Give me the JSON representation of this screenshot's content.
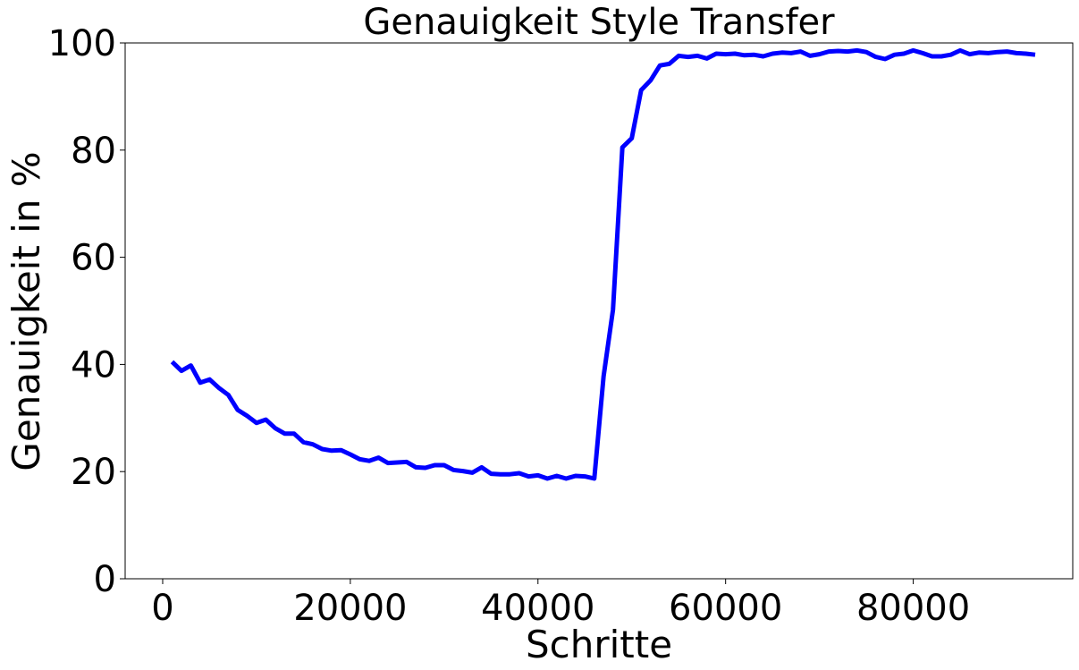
{
  "chart_data": {
    "type": "line",
    "title": "Genauigkeit Style Transfer",
    "xlabel": "Schritte",
    "ylabel": "Genauigkeit in %",
    "xlim": [
      -4000,
      97000
    ],
    "ylim": [
      0,
      100
    ],
    "xticks": [
      "0",
      "20000",
      "40000",
      "60000",
      "80000"
    ],
    "yticks": [
      "0",
      "20",
      "40",
      "60",
      "80",
      "100"
    ],
    "grid": false,
    "series": [
      {
        "color": "#0000ff",
        "x": [
          1000,
          2000,
          3000,
          4000,
          5000,
          6000,
          7000,
          8000,
          9000,
          10000,
          11000,
          12000,
          13000,
          14000,
          15000,
          16000,
          17000,
          18000,
          19000,
          20000,
          21000,
          22000,
          23000,
          24000,
          25000,
          26000,
          27000,
          28000,
          29000,
          30000,
          31000,
          32000,
          33000,
          34000,
          35000,
          36000,
          37000,
          38000,
          39000,
          40000,
          41000,
          42000,
          43000,
          44000,
          45000,
          46000,
          47000,
          48000,
          49000,
          50000,
          51000,
          52000,
          53000,
          54000,
          55000,
          56000,
          57000,
          58000,
          59000,
          60000,
          61000,
          62000,
          63000,
          64000,
          65000,
          66000,
          67000,
          68000,
          69000,
          70000,
          71000,
          72000,
          73000,
          74000,
          75000,
          76000,
          77000,
          78000,
          79000,
          80000,
          81000,
          82000,
          83000,
          84000,
          85000,
          86000,
          87000,
          88000,
          89000,
          90000,
          91000,
          92000,
          93000
        ],
        "y": [
          40.5,
          38.8,
          39.8,
          36.6,
          37.2,
          35.6,
          34.3,
          31.5,
          30.4,
          29.1,
          29.7,
          28.1,
          27.1,
          27.1,
          25.5,
          25.1,
          24.2,
          23.9,
          24.0,
          23.2,
          22.3,
          22.0,
          22.6,
          21.6,
          21.7,
          21.8,
          20.8,
          20.7,
          21.2,
          21.2,
          20.3,
          20.1,
          19.8,
          20.8,
          19.6,
          19.5,
          19.5,
          19.7,
          19.1,
          19.3,
          18.7,
          19.2,
          18.7,
          19.2,
          19.1,
          18.7,
          37.8,
          50.2,
          80.5,
          82.2,
          91.2,
          93.0,
          95.8,
          96.1,
          97.6,
          97.4,
          97.6,
          97.1,
          98.0,
          97.9,
          98.0,
          97.7,
          97.8,
          97.5,
          98.0,
          98.2,
          98.1,
          98.4,
          97.6,
          97.9,
          98.4,
          98.5,
          98.4,
          98.6,
          98.3,
          97.4,
          97.0,
          97.8,
          98.0,
          98.6,
          98.1,
          97.5,
          97.5,
          97.8,
          98.6,
          97.9,
          98.2,
          98.1,
          98.3,
          98.4,
          98.1,
          98.0,
          97.8
        ]
      }
    ]
  }
}
